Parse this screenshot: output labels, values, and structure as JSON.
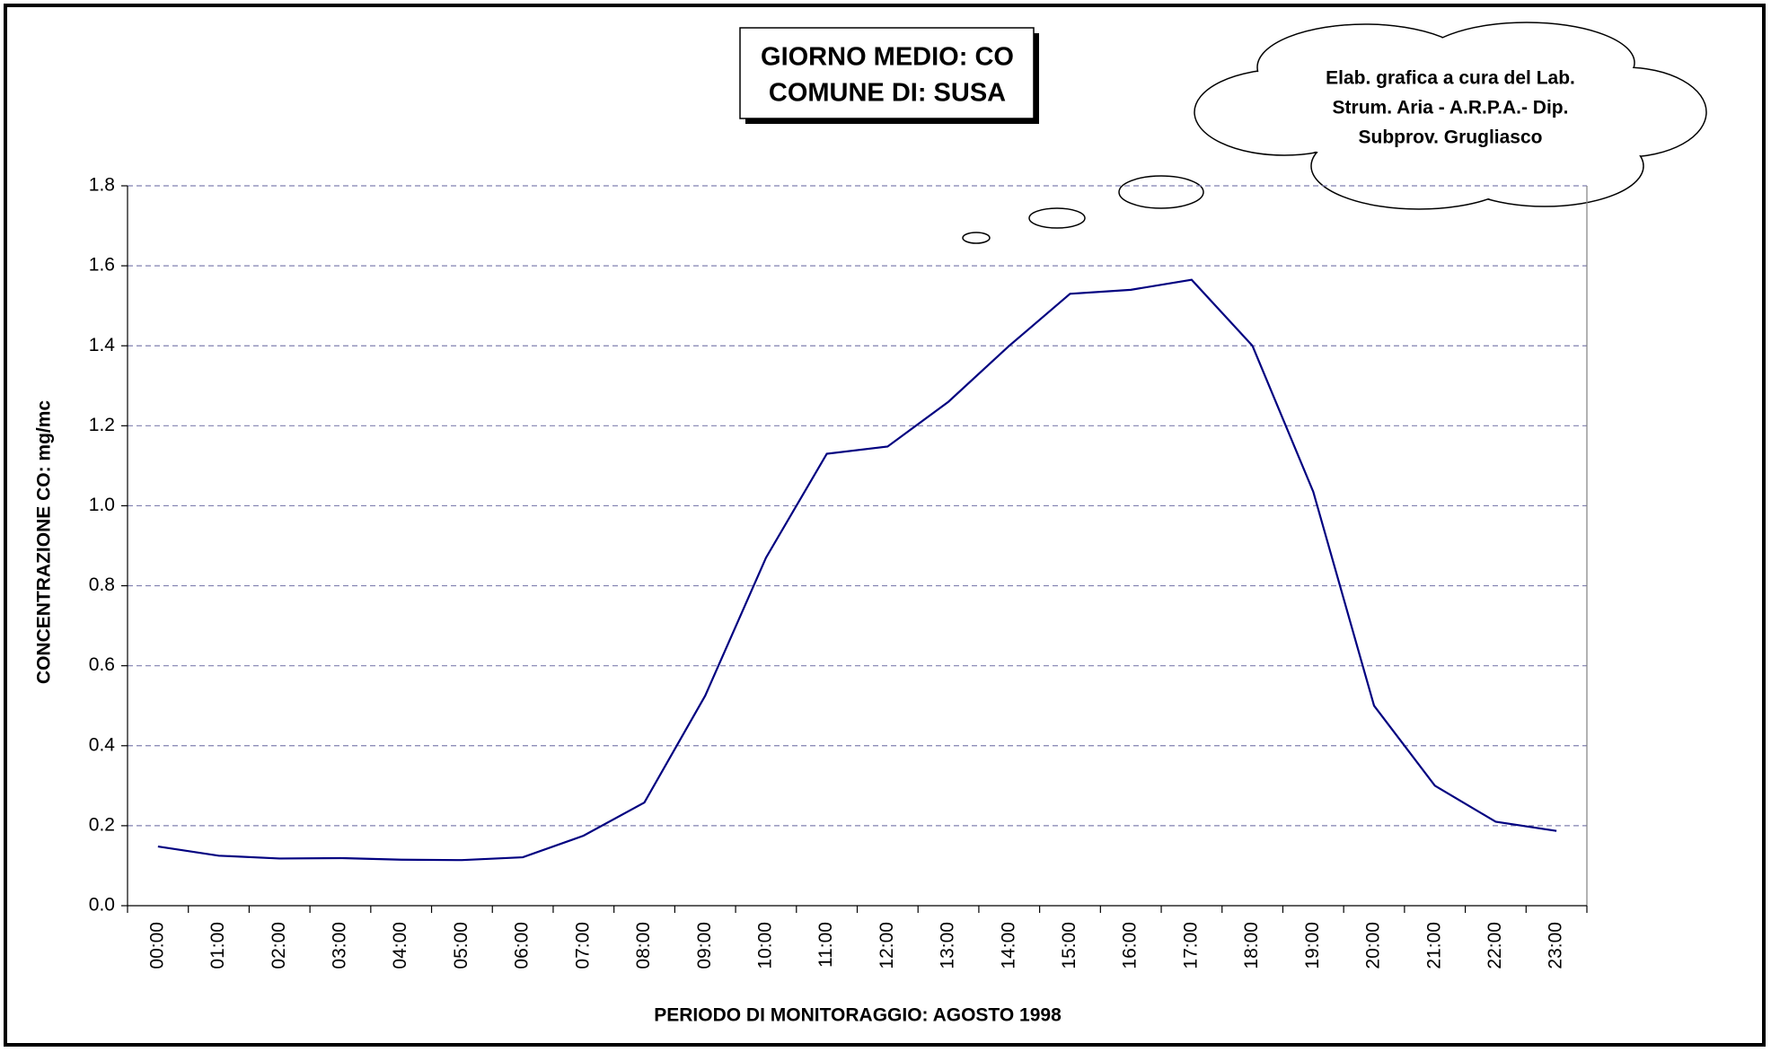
{
  "chart_data": {
    "type": "line",
    "title": "GIORNO MEDIO: CO",
    "subtitle": "COMUNE DI: SUSA",
    "annotation": [
      "Elab. grafica a cura del Lab.",
      "Strum. Aria - A.R.P.A.- Dip.",
      "Subprov. Grugliasco"
    ],
    "x_label": "PERIODO DI MONITORAGGIO: AGOSTO 1998",
    "y_label": "CONCENTRAZIONE CO: mg/mc",
    "categories": [
      "00:00",
      "01:00",
      "02:00",
      "03:00",
      "04:00",
      "05:00",
      "06:00",
      "07:00",
      "08:00",
      "09:00",
      "10:00",
      "11:00",
      "12:00",
      "13:00",
      "14:00",
      "15:00",
      "16:00",
      "17:00",
      "18:00",
      "19:00",
      "20:00",
      "21:00",
      "22:00",
      "23:00"
    ],
    "values": [
      0.148,
      0.125,
      0.118,
      0.119,
      0.115,
      0.114,
      0.121,
      0.175,
      0.258,
      0.525,
      0.87,
      1.13,
      1.148,
      1.26,
      1.4,
      1.53,
      1.54,
      1.565,
      1.4,
      1.035,
      0.5,
      0.3,
      0.21,
      0.187
    ],
    "color": "#000080",
    "ylim": [
      0,
      1.8
    ],
    "yticks": [
      {
        "value": 0,
        "label": "0.0"
      },
      0.2,
      0.4,
      0.6,
      0.8,
      {
        "value": 1,
        "label": "1.0"
      },
      1.2,
      1.4,
      1.6,
      1.8
    ],
    "grid": true
  }
}
